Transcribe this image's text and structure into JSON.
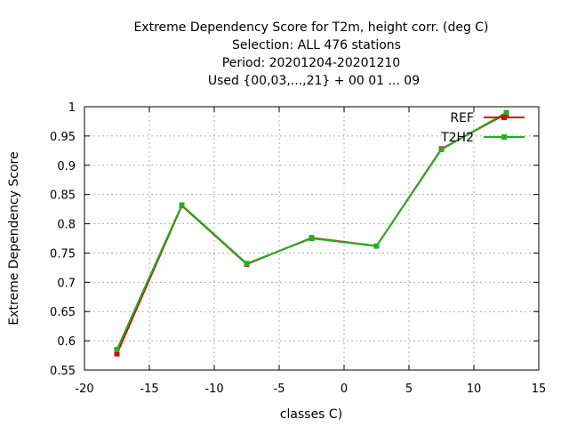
{
  "chart_data": {
    "type": "line",
    "title_lines": [
      "Extreme Dependency Score  for T2m, height corr. (deg C)",
      "Selection: ALL    476 stations",
      "Period: 20201204-20201210",
      "Used {00,03,...,21} + 00 01 ... 09"
    ],
    "xlabel": "classes C)",
    "ylabel": "Extreme Dependency Score",
    "xlim": [
      -20,
      15
    ],
    "ylim": [
      0.55,
      1.0
    ],
    "xticks": [
      -20,
      -15,
      -10,
      -5,
      0,
      5,
      10,
      15
    ],
    "yticks": [
      0.55,
      0.6,
      0.65,
      0.7,
      0.75,
      0.8,
      0.85,
      0.9,
      0.95,
      1.0
    ],
    "xtick_labels": [
      "-20",
      "-15",
      "-10",
      "-5",
      "0",
      "5",
      "10",
      "15"
    ],
    "ytick_labels": [
      "0.55",
      "0.6",
      "0.65",
      "0.7",
      "0.75",
      "0.8",
      "0.85",
      "0.9",
      "0.95",
      "1"
    ],
    "grid": true,
    "legend_position": "top-right",
    "x": [
      -17.5,
      -12.5,
      -7.5,
      -2.5,
      2.5,
      7.5,
      12.5
    ],
    "series": [
      {
        "name": "REF",
        "color": "#e00000",
        "values": [
          0.578,
          0.831,
          0.731,
          0.776,
          0.762,
          0.928,
          0.988
        ]
      },
      {
        "name": "T2H2",
        "color": "#1fb11f",
        "values": [
          0.585,
          0.832,
          0.732,
          0.775,
          0.762,
          0.927,
          0.99
        ]
      }
    ]
  }
}
